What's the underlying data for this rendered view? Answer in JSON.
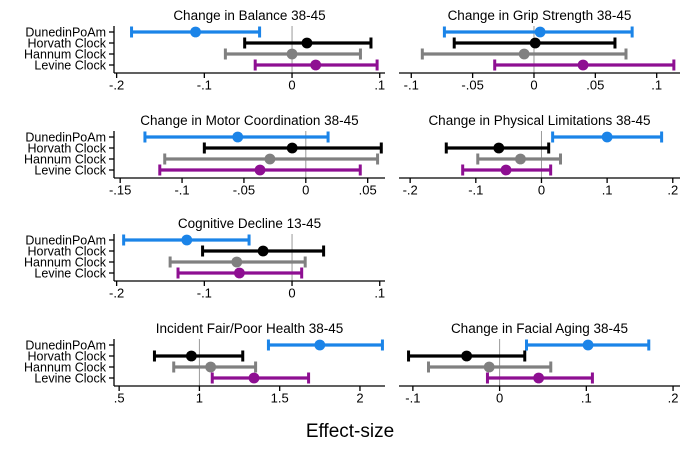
{
  "figure": {
    "xlabel": "Effect-size",
    "categories": [
      "DunedinPoAm",
      "Horvath Clock",
      "Hannum Clock",
      "Levine Clock"
    ],
    "category_colors": [
      "#1b84e8",
      "#000000",
      "#808080",
      "#8e0f92"
    ],
    "ref_line_color": "#999999",
    "axis_color": "#000000",
    "background_color": "#ffffff"
  },
  "chart_data": [
    {
      "type": "scatter",
      "subtype": "forest-errorbar",
      "title": "Change in Balance 38-45",
      "row": 0,
      "col": 0,
      "xlim": [
        -0.203,
        0.106
      ],
      "ref": 0,
      "ticks": [
        {
          "v": -0.2,
          "label": "-.2"
        },
        {
          "v": -0.1,
          "label": "-.1"
        },
        {
          "v": 0,
          "label": "0"
        },
        {
          "v": 0.1,
          "label": ".1"
        }
      ],
      "estimates": [
        {
          "group": "DunedinPoAm",
          "est": -0.11,
          "lo": -0.183,
          "hi": -0.037
        },
        {
          "group": "Horvath Clock",
          "est": 0.017,
          "lo": -0.054,
          "hi": 0.09
        },
        {
          "group": "Hannum Clock",
          "est": 0.0,
          "lo": -0.076,
          "hi": 0.078
        },
        {
          "group": "Levine Clock",
          "est": 0.027,
          "lo": -0.042,
          "hi": 0.097
        }
      ]
    },
    {
      "type": "scatter",
      "subtype": "forest-errorbar",
      "title": "Change in Grip Strength 38-45",
      "row": 0,
      "col": 1,
      "xlim": [
        -0.11,
        0.119
      ],
      "ref": 0,
      "ticks": [
        {
          "v": -0.1,
          "label": "-.1"
        },
        {
          "v": -0.05,
          "label": "-.05"
        },
        {
          "v": 0,
          "label": "0"
        },
        {
          "v": 0.05,
          "label": ".05"
        },
        {
          "v": 0.1,
          "label": ".1"
        }
      ],
      "estimates": [
        {
          "group": "DunedinPoAm",
          "est": 0.005,
          "lo": -0.073,
          "hi": 0.08
        },
        {
          "group": "Horvath Clock",
          "est": 0.001,
          "lo": -0.065,
          "hi": 0.066
        },
        {
          "group": "Hannum Clock",
          "est": -0.008,
          "lo": -0.091,
          "hi": 0.075
        },
        {
          "group": "Levine Clock",
          "est": 0.04,
          "lo": -0.032,
          "hi": 0.114
        }
      ]
    },
    {
      "type": "scatter",
      "subtype": "forest-errorbar",
      "title": "Change in Motor Coordination 38-45",
      "row": 1,
      "col": 0,
      "xlim": [
        -0.155,
        0.064
      ],
      "ref": 0,
      "ticks": [
        {
          "v": -0.15,
          "label": "-.15"
        },
        {
          "v": -0.1,
          "label": "-.1"
        },
        {
          "v": -0.05,
          "label": "-.05"
        },
        {
          "v": 0,
          "label": "0"
        },
        {
          "v": 0.05,
          "label": ".05"
        }
      ],
      "estimates": [
        {
          "group": "DunedinPoAm",
          "est": -0.055,
          "lo": -0.13,
          "hi": 0.018
        },
        {
          "group": "Horvath Clock",
          "est": -0.011,
          "lo": -0.082,
          "hi": 0.061
        },
        {
          "group": "Hannum Clock",
          "est": -0.029,
          "lo": -0.114,
          "hi": 0.058
        },
        {
          "group": "Levine Clock",
          "est": -0.037,
          "lo": -0.118,
          "hi": 0.044
        }
      ]
    },
    {
      "type": "scatter",
      "subtype": "forest-errorbar",
      "title": "Change in Physical Limitations 38-45",
      "row": 1,
      "col": 1,
      "xlim": [
        -0.217,
        0.211
      ],
      "ref": 0,
      "ticks": [
        {
          "v": -0.2,
          "label": "-.2"
        },
        {
          "v": -0.1,
          "label": "-.1"
        },
        {
          "v": 0,
          "label": "0"
        },
        {
          "v": 0.1,
          "label": ".1"
        },
        {
          "v": 0.2,
          "label": ".2"
        }
      ],
      "estimates": [
        {
          "group": "DunedinPoAm",
          "est": 0.1,
          "lo": 0.017,
          "hi": 0.183
        },
        {
          "group": "Horvath Clock",
          "est": -0.065,
          "lo": -0.145,
          "hi": 0.011
        },
        {
          "group": "Hannum Clock",
          "est": -0.032,
          "lo": -0.097,
          "hi": 0.029
        },
        {
          "group": "Levine Clock",
          "est": -0.054,
          "lo": -0.12,
          "hi": 0.014
        }
      ]
    },
    {
      "type": "scatter",
      "subtype": "forest-errorbar",
      "title": "Cognitive Decline 13-45",
      "row": 2,
      "col": 0,
      "xlim": [
        -0.203,
        0.106
      ],
      "ref": 0,
      "ticks": [
        {
          "v": -0.2,
          "label": "-.2"
        },
        {
          "v": -0.1,
          "label": "-.1"
        },
        {
          "v": 0,
          "label": "0"
        },
        {
          "v": 0.1,
          "label": ".1"
        }
      ],
      "estimates": [
        {
          "group": "DunedinPoAm",
          "est": -0.12,
          "lo": -0.192,
          "hi": -0.049
        },
        {
          "group": "Horvath Clock",
          "est": -0.033,
          "lo": -0.102,
          "hi": 0.036
        },
        {
          "group": "Hannum Clock",
          "est": -0.063,
          "lo": -0.139,
          "hi": 0.015
        },
        {
          "group": "Levine Clock",
          "est": -0.06,
          "lo": -0.13,
          "hi": 0.011
        }
      ]
    },
    {
      "type": "scatter",
      "subtype": "forest-errorbar",
      "title": "Incident Fair/Poor Health 38-45",
      "row": 3,
      "col": 0,
      "xlim": [
        0.468,
        2.156
      ],
      "ref": 1,
      "ticks": [
        {
          "v": 0.5,
          "label": ".5"
        },
        {
          "v": 1,
          "label": "1"
        },
        {
          "v": 1.5,
          "label": "1.5"
        },
        {
          "v": 2,
          "label": "2"
        }
      ],
      "estimates": [
        {
          "group": "DunedinPoAm",
          "est": 1.75,
          "lo": 1.43,
          "hi": 2.14
        },
        {
          "group": "Horvath Clock",
          "est": 0.95,
          "lo": 0.72,
          "hi": 1.27
        },
        {
          "group": "Hannum Clock",
          "est": 1.07,
          "lo": 0.84,
          "hi": 1.35
        },
        {
          "group": "Levine Clock",
          "est": 1.34,
          "lo": 1.08,
          "hi": 1.68
        }
      ]
    },
    {
      "type": "scatter",
      "subtype": "forest-errorbar",
      "title": "Change in Facial Aging 38-45",
      "row": 3,
      "col": 1,
      "xlim": [
        -0.116,
        0.208
      ],
      "ref": 0,
      "ticks": [
        {
          "v": -0.1,
          "label": "-.1"
        },
        {
          "v": 0,
          "label": "0"
        },
        {
          "v": 0.1,
          "label": ".1"
        },
        {
          "v": 0.2,
          "label": ".2"
        }
      ],
      "estimates": [
        {
          "group": "DunedinPoAm",
          "est": 0.102,
          "lo": 0.031,
          "hi": 0.172
        },
        {
          "group": "Horvath Clock",
          "est": -0.038,
          "lo": -0.105,
          "hi": 0.029
        },
        {
          "group": "Hannum Clock",
          "est": -0.012,
          "lo": -0.082,
          "hi": 0.059
        },
        {
          "group": "Levine Clock",
          "est": 0.045,
          "lo": -0.014,
          "hi": 0.107
        }
      ]
    }
  ]
}
